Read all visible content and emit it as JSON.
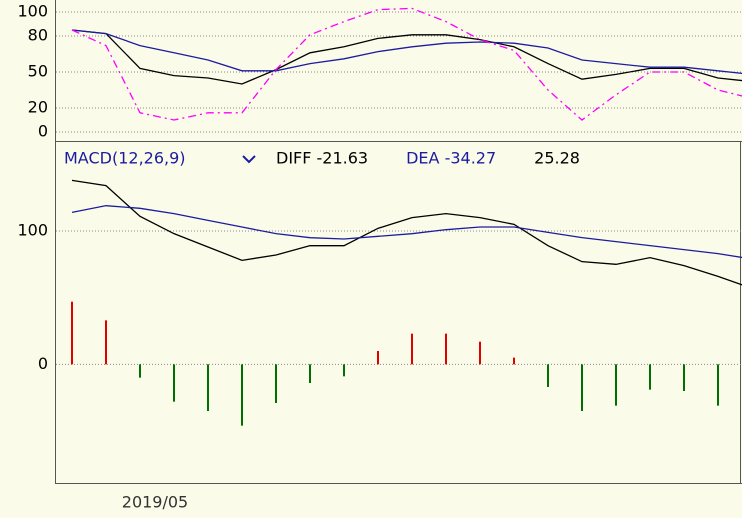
{
  "chart_data": [
    {
      "type": "line",
      "categories": [
        null,
        null,
        null,
        null,
        null,
        null,
        null,
        null,
        null,
        null,
        null,
        null,
        null,
        null,
        null,
        null,
        null,
        null,
        null,
        null,
        null
      ],
      "ylim": [
        0,
        110
      ],
      "yticks": [
        0,
        20,
        50,
        80,
        100
      ],
      "grid": true,
      "series": [
        {
          "color": "#000000",
          "values": [
            85,
            82,
            53,
            47,
            45,
            40,
            52,
            66,
            71,
            78,
            81,
            81,
            77,
            71,
            57,
            44,
            48,
            53,
            53,
            45,
            42
          ]
        },
        {
          "color": "#1c1ca0",
          "values": [
            85,
            82,
            72,
            66,
            60,
            51,
            51,
            57,
            61,
            67,
            71,
            74,
            75,
            74,
            70,
            60,
            57,
            54,
            54,
            51,
            48
          ]
        },
        {
          "color": "#ff00ff",
          "dash": true,
          "values": [
            85,
            72,
            16,
            10,
            16,
            16,
            52,
            81,
            92,
            102,
            103,
            92,
            77,
            68,
            35,
            10,
            31,
            50,
            50,
            35,
            28
          ]
        }
      ]
    },
    {
      "type": "bar",
      "title": "MACD(12,26,9)",
      "categories": [
        null,
        null,
        "2019/05",
        null,
        null,
        null,
        null,
        null,
        null,
        null,
        null,
        null,
        null,
        null,
        null,
        null,
        null,
        null,
        null,
        null,
        null
      ],
      "ylim": [
        -89,
        166
      ],
      "yticks": [
        0,
        100
      ],
      "grid": true,
      "series": [
        {
          "type": "line",
          "name": "DIFF",
          "label": "DIFF -21.63",
          "color": "#000000",
          "values": [
            138,
            134,
            111,
            98,
            88,
            78,
            82,
            89,
            89,
            102,
            110,
            113,
            110,
            105,
            89,
            77,
            75,
            80,
            74,
            66,
            57
          ]
        },
        {
          "type": "line",
          "name": "DEA",
          "label": "DEA -34.27",
          "color": "#1c1ca0",
          "values": [
            114,
            119,
            117,
            113,
            108,
            103,
            98,
            95,
            94,
            96,
            98,
            101,
            103,
            103,
            99,
            95,
            92,
            89,
            86,
            83,
            79
          ]
        },
        {
          "type": "bar",
          "label": "25.28",
          "color": "#000000",
          "up_color": "#e00000",
          "down_color": "#007000",
          "values": [
            47,
            33,
            -10,
            -28,
            -35,
            -46,
            -29,
            -14,
            -9,
            10,
            23,
            23,
            17,
            5,
            -17,
            -35,
            -31,
            -19,
            -20,
            -31,
            null
          ]
        }
      ]
    }
  ]
}
